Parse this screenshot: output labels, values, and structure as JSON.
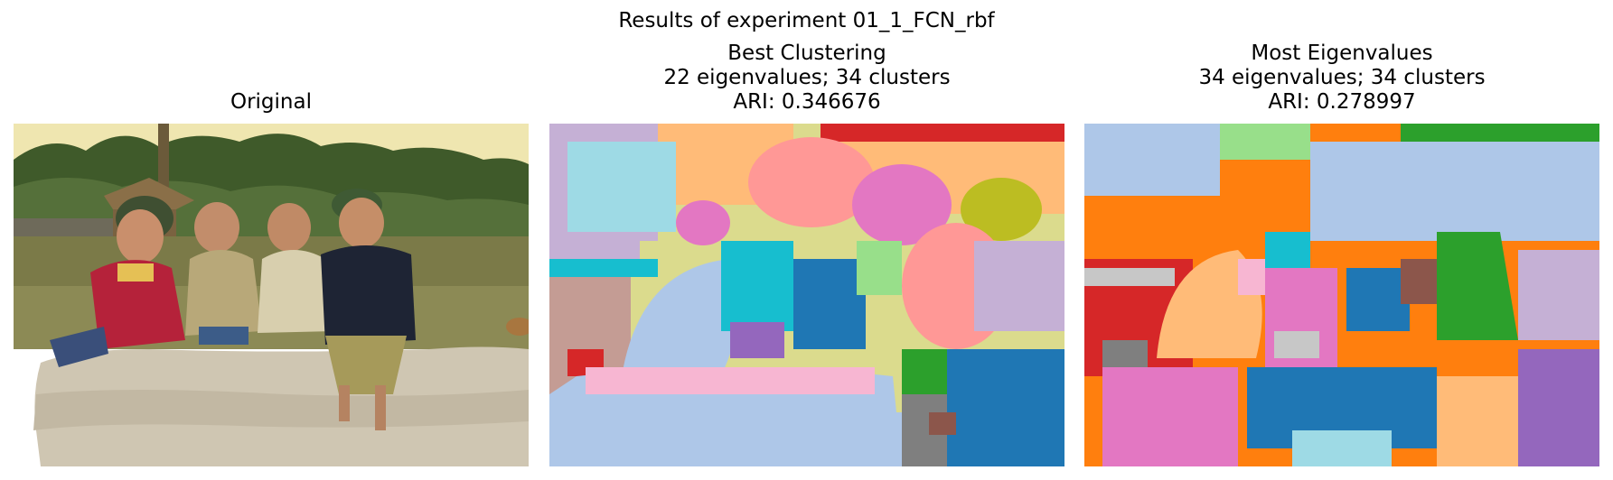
{
  "figure": {
    "suptitle": "Results of experiment 01_1_FCN_rbf"
  },
  "panels": [
    {
      "title_lines": [
        "Original"
      ]
    },
    {
      "title_lines": [
        "Best Clustering",
        "22 eigenvalues; 34 clusters",
        "ARI: 0.346676"
      ]
    },
    {
      "title_lines": [
        "Most Eigenvalues",
        "34 eigenvalues; 34 clusters",
        "ARI: 0.278997"
      ]
    }
  ],
  "colors": {
    "tab20_blue": "#1f77b4",
    "tab20_lightblue": "#aec7e8",
    "tab20_orange": "#ff7f0e",
    "tab20_lightorange": "#ffbb78",
    "tab20_green": "#2ca02c",
    "tab20_lightgreen": "#98df8a",
    "tab20_red": "#d62728",
    "tab20_pink": "#ff9896",
    "tab20_purple": "#9467bd",
    "tab20_lavender": "#c5b0d5",
    "tab20_brown": "#8c564b",
    "tab20_tan": "#c49c94",
    "tab20_magenta": "#e377c2",
    "tab20_lightpink": "#f7b6d2",
    "tab20_gray": "#7f7f7f",
    "tab20_lightgray": "#c7c7c7",
    "tab20_olive": "#bcbd22",
    "tab20_khaki": "#dbdb8d",
    "tab20_cyan": "#17becf",
    "tab20_lightcyan": "#9edae5"
  }
}
